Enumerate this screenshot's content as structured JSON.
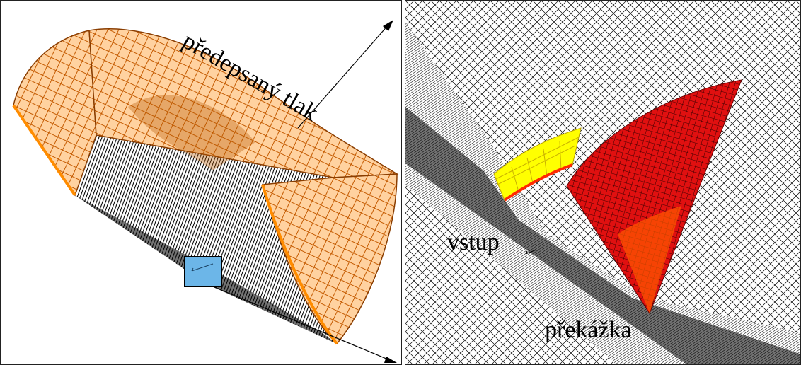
{
  "labels": {
    "pressure": "předepsaný tlak",
    "inlet": "vstup",
    "obstacle": "překážka"
  },
  "colors": {
    "mesh": "#000000",
    "pressure_surface": "#ff8c00",
    "pressure_grid": "#7a3a00",
    "highlight_box": "#6cb6e8",
    "inlet_surface": "#ffff00",
    "obstacle_surface": "#e01010",
    "inlet_edge": "#ff2a00"
  },
  "icons": {
    "axis": "arrow-icon",
    "zoom": "zoom-box-icon"
  }
}
